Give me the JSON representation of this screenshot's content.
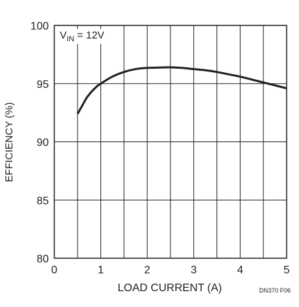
{
  "chart_data": {
    "type": "line",
    "title": "",
    "annotation": {
      "v": "V",
      "sub": "IN",
      "rest": " = 12V"
    },
    "xlabel": "LOAD CURRENT (A)",
    "ylabel": "EFFICIENCY (%)",
    "figure_id": "DN370 F06",
    "xlim": [
      0,
      5
    ],
    "ylim": [
      80,
      100
    ],
    "x_ticks": [
      0,
      1,
      2,
      3,
      4,
      5
    ],
    "y_ticks": [
      80,
      85,
      90,
      95,
      100
    ],
    "x_gridlines": [
      0.5,
      1,
      1.5,
      2,
      2.5,
      3,
      3.5,
      4,
      4.5,
      5
    ],
    "y_gridlines": [
      85,
      90,
      95
    ],
    "grid": true,
    "series": [
      {
        "x": [
          0.5,
          0.6,
          0.7,
          0.8,
          0.9,
          1.0,
          1.25,
          1.5,
          1.75,
          2.0,
          2.25,
          2.5,
          2.75,
          3.0,
          3.25,
          3.5,
          3.75,
          4.0,
          4.25,
          4.5,
          4.75,
          5.0
        ],
        "y": [
          92.4,
          93.1,
          93.8,
          94.3,
          94.7,
          95.0,
          95.6,
          96.0,
          96.25,
          96.35,
          96.38,
          96.4,
          96.35,
          96.25,
          96.15,
          96.0,
          95.8,
          95.6,
          95.35,
          95.1,
          94.85,
          94.6
        ]
      }
    ],
    "colors": {
      "line": "#231f20",
      "grid": "#231f20",
      "background": "#ffffff"
    }
  }
}
